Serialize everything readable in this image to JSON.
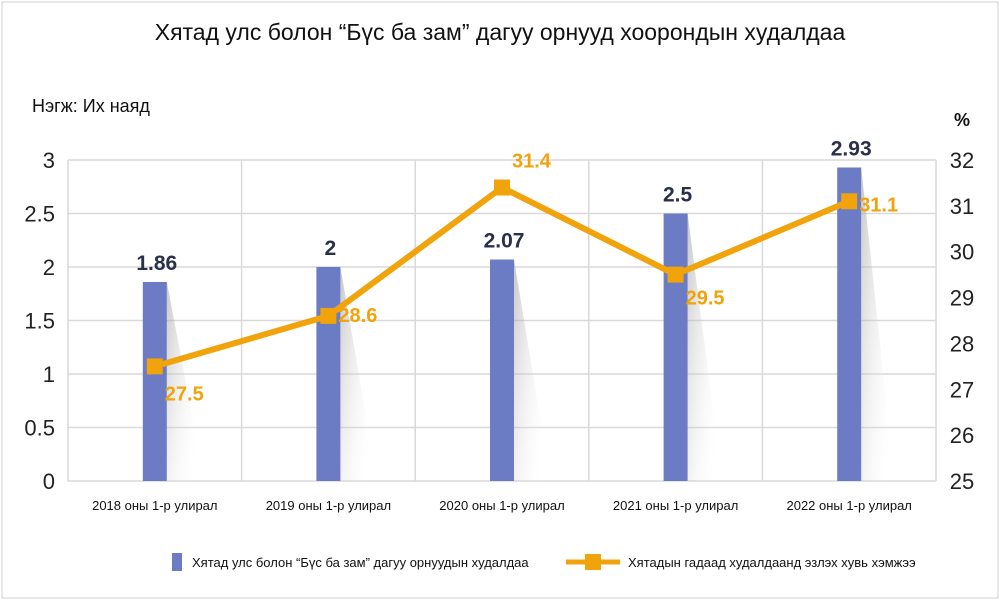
{
  "chart_data": {
    "type": "bar+line",
    "title": "Хятад улс болон “Бүс ба зам” дагуу орнууд хоорондын худалдаа",
    "y_unit_label": "Нэгж: Их наяд",
    "y2_unit_label": "%",
    "categories": [
      "2018 оны 1-р улирал",
      "2019 оны 1-р улирал",
      "2020 оны 1-р улирал",
      "2021 оны 1-р улирал",
      "2022 оны 1-р улирал"
    ],
    "ylim": [
      0,
      3
    ],
    "yticks": [
      "0",
      "0.5",
      "1",
      "1.5",
      "2",
      "2.5",
      "3"
    ],
    "y2lim": [
      25,
      32
    ],
    "y2ticks": [
      "25",
      "26",
      "27",
      "28",
      "29",
      "30",
      "31",
      "32"
    ],
    "grid": true,
    "legend_position": "bottom",
    "series": [
      {
        "name": "Хятад улс болон “Бүс ба зам” дагуу орнуудын худалдаа",
        "type": "bar",
        "axis": "left",
        "color": "#6b7bc4",
        "values": [
          1.86,
          2,
          2.07,
          2.5,
          2.93
        ],
        "labels": [
          "1.86",
          "2",
          "2.07",
          "2.5",
          "2.93"
        ]
      },
      {
        "name": "Хятадын гадаад худалдаанд эзлэх хувь хэмжээ",
        "type": "line",
        "axis": "right",
        "color": "#f0a30a",
        "values": [
          27.5,
          28.6,
          31.4,
          29.5,
          31.1
        ],
        "labels": [
          "27.5",
          "28.6",
          "31.4",
          "29.5",
          "31.1"
        ]
      }
    ]
  }
}
